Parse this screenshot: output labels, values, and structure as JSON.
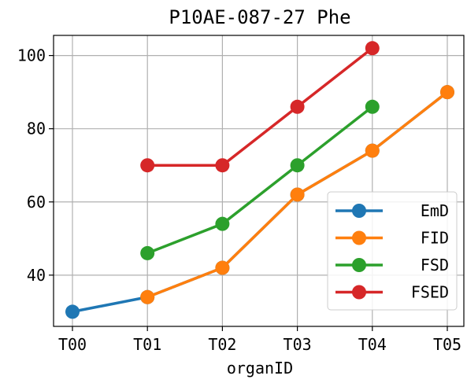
{
  "chart_data": {
    "type": "line",
    "title": "P10AE-087-27 Phe",
    "xlabel": "organID",
    "ylabel": "",
    "categories": [
      "T00",
      "T01",
      "T02",
      "T03",
      "T04",
      "T05"
    ],
    "ylim": [
      26,
      105.5
    ],
    "yticks": [
      40,
      60,
      80,
      100
    ],
    "grid": true,
    "legend_position": "lower-right",
    "series": [
      {
        "name": "EmD",
        "color": "#1f77b4",
        "values": [
          30,
          34,
          42,
          62,
          74,
          90
        ]
      },
      {
        "name": "FID",
        "color": "#ff7f0e",
        "values": [
          null,
          34,
          42,
          62,
          74,
          90
        ]
      },
      {
        "name": "FSD",
        "color": "#2ca02c",
        "values": [
          null,
          46,
          54,
          70,
          86,
          null
        ]
      },
      {
        "name": "FSED",
        "color": "#d62728",
        "values": [
          null,
          70,
          70,
          86,
          102,
          null
        ]
      }
    ]
  }
}
